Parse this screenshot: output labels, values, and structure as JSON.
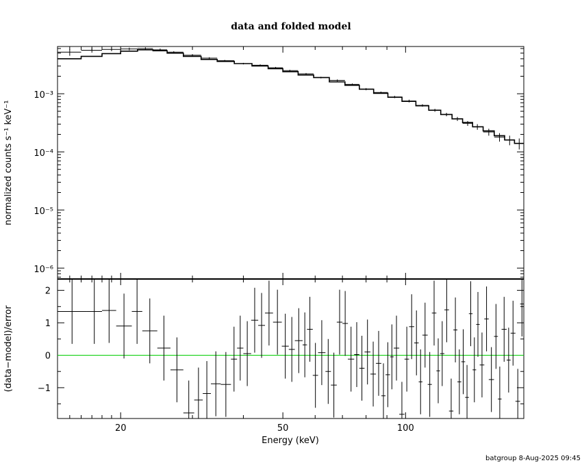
{
  "chart_data": [
    {
      "type": "line",
      "title": "data and folded model",
      "xlabel": "",
      "ylabel": "normalized counts s⁻¹ keV⁻¹",
      "x_scale": "log",
      "y_scale": "log",
      "xlim": [
        14,
        195
      ],
      "ylim": [
        6.5e-07,
        0.0065
      ],
      "y_ticks": [
        {
          "value": 0.001,
          "label": "10⁻³"
        },
        {
          "value": 0.0001,
          "label": "10⁻⁴"
        },
        {
          "value": 1e-05,
          "label": "10⁻⁵"
        },
        {
          "value": 1e-06,
          "label": "10⁻⁶"
        }
      ],
      "series": [
        {
          "kind": "data",
          "x": [
            15,
            17,
            19,
            21,
            23,
            25,
            27,
            30,
            33,
            36,
            40,
            44,
            48,
            52,
            57,
            62,
            68,
            74,
            80,
            87,
            94,
            102,
            110,
            118,
            126,
            134,
            142,
            150,
            160,
            170,
            180,
            190
          ],
          "x_lo": [
            14,
            16,
            18,
            20,
            22,
            24,
            26,
            28.5,
            31.5,
            34.5,
            38,
            42,
            46,
            50,
            54.5,
            59.5,
            65,
            71,
            77,
            83.5,
            90.5,
            98,
            106,
            114,
            122,
            130,
            138,
            146,
            155,
            165,
            175,
            185
          ],
          "x_hi": [
            16,
            18,
            20,
            22,
            24,
            26,
            28.5,
            31.5,
            34.5,
            38,
            42,
            46,
            50,
            54.5,
            59.5,
            65,
            71,
            77,
            83.5,
            90.5,
            98,
            106,
            114,
            122,
            130,
            138,
            146,
            155,
            165,
            175,
            185,
            195
          ],
          "y": [
            0.0052,
            0.0056,
            0.0058,
            0.0059,
            0.006,
            0.0057,
            0.0052,
            0.0046,
            0.0041,
            0.0037,
            0.0033,
            0.0031,
            0.0028,
            0.0025,
            0.0022,
            0.0019,
            0.0017,
            0.00145,
            0.0012,
            0.00105,
            0.00088,
            0.00075,
            0.00063,
            0.00052,
            0.00044,
            0.00037,
            0.00031,
            0.00027,
            0.00022,
            0.00018,
            0.00016,
            0.00014
          ],
          "y_err": [
            0.0007,
            0.0005,
            0.0004,
            0.0003,
            0.0003,
            0.0003,
            0.0002,
            0.0002,
            0.00015,
            0.00012,
            0.0001,
            0.0001,
            9e-05,
            8e-05,
            7e-05,
            6e-05,
            6e-05,
            5e-05,
            5e-05,
            4e-05,
            4e-05,
            4e-05,
            3e-05,
            3e-05,
            3e-05,
            3e-05,
            3e-05,
            3e-05,
            3e-05,
            3e-05,
            3e-05,
            3e-05
          ]
        },
        {
          "kind": "model",
          "x": [
            14,
            16,
            18,
            20,
            22,
            24,
            26,
            28.5,
            31.5,
            34.5,
            38,
            42,
            46,
            50,
            54.5,
            59.5,
            65,
            71,
            77,
            83.5,
            90.5,
            98,
            106,
            114,
            122,
            130,
            138,
            146,
            155,
            165,
            175,
            185
          ],
          "y": [
            0.004,
            0.0044,
            0.0049,
            0.0054,
            0.0057,
            0.0055,
            0.005,
            0.0044,
            0.0039,
            0.0036,
            0.0033,
            0.003,
            0.0027,
            0.0024,
            0.0021,
            0.0019,
            0.0016,
            0.0014,
            0.0012,
            0.00102,
            0.00087,
            0.00074,
            0.00062,
            0.00052,
            0.00044,
            0.00037,
            0.00032,
            0.00027,
            0.00023,
            0.00019,
            0.00016,
            0.00014
          ]
        }
      ]
    },
    {
      "type": "scatter",
      "title": "",
      "xlabel": "Energy (keV)",
      "ylabel": "(data−model)/error",
      "x_scale": "log",
      "xlim": [
        14,
        195
      ],
      "ylim": [
        -1.95,
        2.35
      ],
      "x_ticks": [
        {
          "value": 20,
          "label": "20"
        },
        {
          "value": 50,
          "label": "50"
        },
        {
          "value": 100,
          "label": "100"
        }
      ],
      "y_ticks": [
        {
          "value": 2,
          "label": "2"
        },
        {
          "value": 1,
          "label": "1"
        },
        {
          "value": 0,
          "label": "0"
        },
        {
          "value": -1,
          "label": "−1"
        }
      ],
      "reference_line": {
        "y": 0,
        "color": "#00cc00"
      },
      "series": [
        {
          "kind": "residual",
          "x_lo": [
            14,
            16.5,
            18,
            19.5,
            21.3,
            22.6,
            24.6,
            26.5,
            28.5,
            30.3,
            31.8,
            33.3,
            35.2,
            37.3,
            38.6,
            40,
            41.8,
            43.5,
            45.2,
            47.3,
            49.7,
            51.7,
            53.5,
            55.9,
            57.3,
            59.2,
            61,
            63.6,
            65.6,
            67.8,
            70,
            72.2,
            74.8,
            77,
            79.3,
            82,
            84.6,
            87.2,
            89.3,
            91.6,
            93.5,
            96.5,
            99.4,
            102,
            105,
            107.7,
            110,
            113.3,
            116,
            119,
            121.5,
            124.5,
            127.8,
            131,
            134,
            137,
            140,
            143,
            146,
            149,
            152,
            156,
            160,
            164.8,
            168.5,
            172,
            177,
            181,
            186,
            191
          ],
          "x_hi": [
            16.5,
            18,
            19.5,
            21.3,
            22.6,
            24.6,
            26.5,
            28.5,
            30.3,
            31.8,
            33.3,
            35.2,
            37.3,
            38.6,
            40,
            41.8,
            43.5,
            45.2,
            47.3,
            49.7,
            51.7,
            53.5,
            55.9,
            57.3,
            59.2,
            61,
            63.6,
            65.6,
            67.8,
            70,
            72.2,
            74.8,
            77,
            79.3,
            82,
            84.6,
            87.2,
            89.3,
            91.6,
            93.5,
            96.5,
            99.4,
            102,
            105,
            107.7,
            110,
            113.3,
            116,
            119,
            121.5,
            124.5,
            127.8,
            131,
            134,
            137,
            140,
            143,
            146,
            149,
            152,
            156,
            160,
            164.8,
            168.5,
            172,
            177,
            181,
            186,
            191,
            195
          ],
          "y": [
            1.35,
            1.35,
            1.38,
            0.9,
            1.35,
            0.75,
            0.22,
            -0.45,
            -1.78,
            -1.38,
            -1.18,
            -0.88,
            -0.9,
            -0.12,
            0.22,
            0.05,
            1.08,
            0.92,
            1.3,
            1.02,
            0.28,
            0.18,
            0.45,
            0.32,
            0.8,
            -0.62,
            0.08,
            -0.5,
            -0.92,
            1.02,
            0.98,
            -0.12,
            0.02,
            -0.4,
            0.1,
            -0.58,
            -0.25,
            -1.25,
            -0.6,
            -0.05,
            0.22,
            -1.82,
            -0.12,
            0.88,
            0.38,
            -0.82,
            0.62,
            -0.9,
            1.3,
            -0.48,
            0.05,
            1.4,
            -1.72,
            0.78,
            -0.82,
            -0.2,
            -1.3,
            1.28,
            -0.45,
            0.95,
            -0.3,
            1.12,
            -0.75,
            0.58,
            -1.35,
            0.8,
            -0.15,
            0.68,
            -1.42,
            1.58
          ],
          "y_err": [
            1,
            1,
            1,
            1,
            1,
            1,
            1,
            1,
            1,
            1,
            1,
            1,
            1,
            1,
            1,
            1,
            1,
            1,
            1,
            1,
            1,
            1,
            1,
            1,
            1,
            1,
            1,
            1,
            1,
            1,
            1,
            1,
            1,
            1,
            1,
            1,
            1,
            1,
            1,
            1,
            1,
            1,
            1,
            1,
            1,
            1,
            1,
            1,
            1,
            1,
            1,
            1,
            1,
            1,
            1,
            1,
            1,
            1,
            1,
            1,
            1,
            1,
            1,
            1,
            1,
            1,
            1,
            1,
            1,
            1
          ]
        }
      ]
    }
  ],
  "footer": "batgroup  8-Aug-2025 09:45"
}
